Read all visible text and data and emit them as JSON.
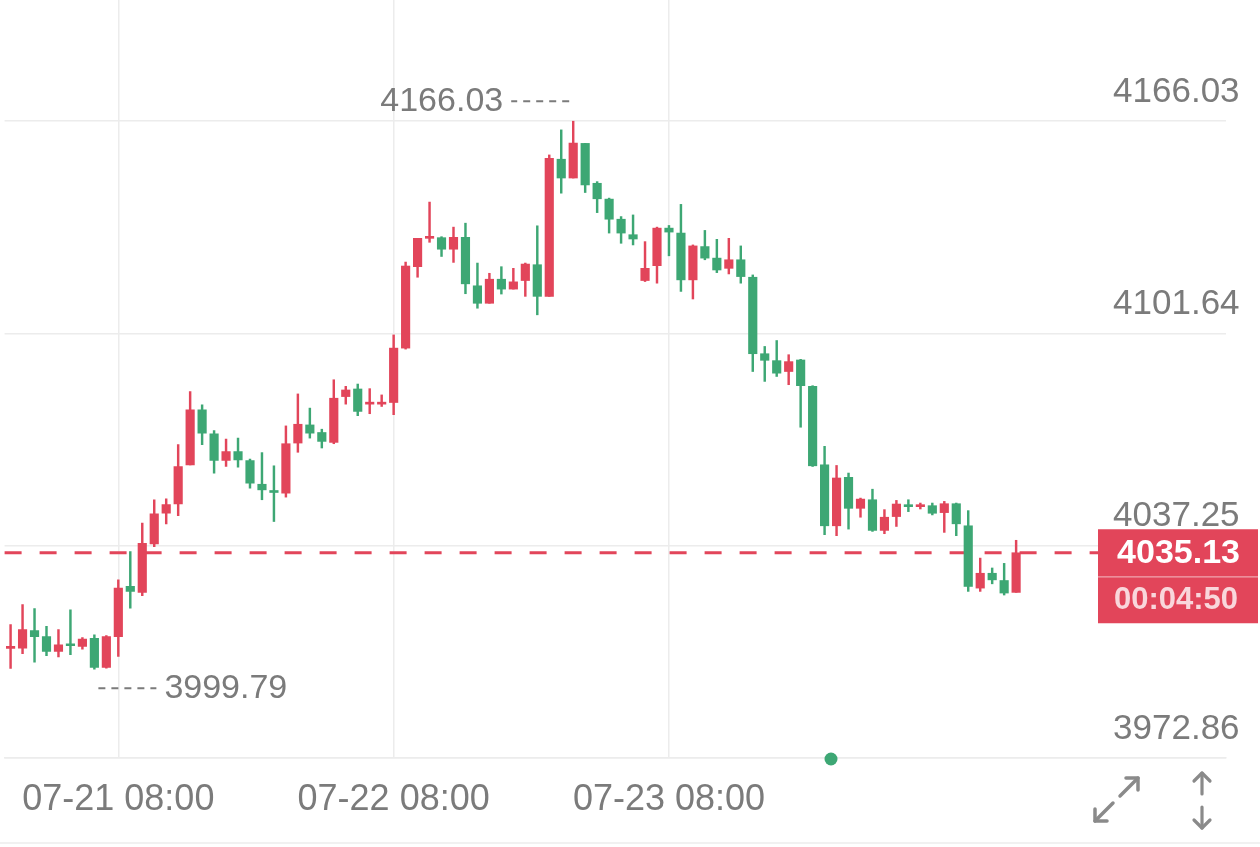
{
  "chart_data": {
    "type": "candlestick",
    "categories": [
      null,
      null,
      null,
      null,
      null,
      null,
      null,
      null,
      null,
      "07-21 08:00",
      null,
      null,
      null,
      null,
      null,
      null,
      null,
      null,
      null,
      null,
      null,
      null,
      null,
      null,
      null,
      null,
      null,
      null,
      null,
      null,
      null,
      null,
      "07-22 08:00",
      null,
      null,
      null,
      null,
      null,
      null,
      null,
      null,
      null,
      null,
      null,
      null,
      null,
      null,
      null,
      null,
      null,
      null,
      null,
      null,
      null,
      null,
      "07-23 08:00",
      null,
      null,
      null,
      null,
      null,
      null,
      null,
      null,
      null,
      null,
      null,
      null,
      null,
      null,
      null,
      null,
      null,
      null,
      null,
      null,
      null,
      null,
      null,
      null,
      null,
      null,
      null,
      null,
      null,
      null,
      null,
      null,
      null,
      null,
      null,
      null,
      null,
      null,
      null,
      null,
      null,
      null,
      null,
      null,
      null,
      null
    ],
    "ohlc": [
      [
        4006.1,
        4013.3,
        4000.0,
        4006.3
      ],
      [
        4006.2,
        4019.4,
        4004.5,
        4011.8
      ],
      [
        4011.5,
        4018.2,
        4001.9,
        4009.7
      ],
      [
        4009.7,
        4012.8,
        4003.9,
        4005.2
      ],
      [
        4005.2,
        4011.8,
        4003.5,
        4007.2
      ],
      [
        4007.2,
        4017.8,
        4004.2,
        4006.9
      ],
      [
        4006.7,
        4009.4,
        4005.9,
        4008.9
      ],
      [
        4009.2,
        4010.2,
        3999.79,
        4000.3
      ],
      [
        4000.3,
        4010.0,
        4000.1,
        4009.7
      ],
      [
        4009.7,
        4026.9,
        4003.7,
        4024.4
      ],
      [
        4024.9,
        4035.5,
        4018.3,
        4023.4
      ],
      [
        4023.1,
        4044.1,
        4022.1,
        4038.0
      ],
      [
        4037.8,
        4051.2,
        4037.0,
        4046.9
      ],
      [
        4047.1,
        4051.5,
        4043.9,
        4049.7
      ],
      [
        4049.9,
        4067.9,
        4046.4,
        4061.3
      ],
      [
        4061.8,
        4084.0,
        4061.8,
        4078.5
      ],
      [
        4078.5,
        4080.0,
        4067.9,
        4071.4
      ],
      [
        4071.2,
        4072.2,
        4059.3,
        4063.1
      ],
      [
        4063.1,
        4069.6,
        4061.3,
        4065.8
      ],
      [
        4065.8,
        4069.9,
        4061.1,
        4063.3
      ],
      [
        4063.1,
        4063.5,
        4054.7,
        4056.2
      ],
      [
        4055.9,
        4065.5,
        4051.2,
        4054.2
      ],
      [
        4053.7,
        4061.5,
        4044.6,
        4053.4
      ],
      [
        4053.2,
        4073.6,
        4052.0,
        4068.2
      ],
      [
        4068.4,
        4083.3,
        4065.6,
        4074.1
      ],
      [
        4073.9,
        4079.0,
        4069.9,
        4071.4
      ],
      [
        4071.6,
        4072.6,
        4066.9,
        4068.9
      ],
      [
        4068.6,
        4087.6,
        4068.2,
        4082.0
      ],
      [
        4082.5,
        4085.6,
        4080.2,
        4084.5
      ],
      [
        4084.8,
        4086.3,
        4076.7,
        4078.0
      ],
      [
        4080.2,
        4084.9,
        4077.3,
        4080.5
      ],
      [
        4080.2,
        4083.0,
        4079.5,
        4080.8
      ],
      [
        4080.7,
        4101.2,
        4077.0,
        4097.2
      ],
      [
        4097.2,
        4123.3,
        4096.9,
        4122.1
      ],
      [
        4121.9,
        4130.5,
        4118.7,
        4130.5
      ],
      [
        4130.5,
        4141.5,
        4129.3,
        4130.8
      ],
      [
        4130.7,
        4131.0,
        4125.0,
        4127.2
      ],
      [
        4127.2,
        4133.9,
        4123.2,
        4130.8
      ],
      [
        4130.8,
        4135.1,
        4113.7,
        4116.7
      ],
      [
        4116.1,
        4123.0,
        4109.3,
        4110.8
      ],
      [
        4110.8,
        4119.9,
        4110.8,
        4118.1
      ],
      [
        4118.1,
        4121.9,
        4113.6,
        4115.1
      ],
      [
        4115.1,
        4121.4,
        4115.1,
        4117.3
      ],
      [
        4117.7,
        4123.0,
        4112.9,
        4122.7
      ],
      [
        4122.5,
        4134.3,
        4107.3,
        4112.9
      ],
      [
        4112.9,
        4155.8,
        4112.9,
        4154.8
      ],
      [
        4154.5,
        4163.4,
        4144.2,
        4148.8
      ],
      [
        4148.8,
        4166.03,
        4148.8,
        4159.4
      ],
      [
        4159.3,
        4159.3,
        4144.4,
        4146.7
      ],
      [
        4147.2,
        4147.7,
        4138.3,
        4142.5
      ],
      [
        4142.4,
        4142.7,
        4132.1,
        4136.3
      ],
      [
        4136.3,
        4137.1,
        4129.0,
        4132.1
      ],
      [
        4131.6,
        4137.6,
        4128.5,
        4130.3
      ],
      [
        4117.7,
        4129.5,
        4117.4,
        4121.4
      ],
      [
        4122.2,
        4133.9,
        4116.9,
        4133.6
      ],
      [
        4133.6,
        4134.4,
        4125.2,
        4132.4
      ],
      [
        4132.1,
        4140.8,
        4114.4,
        4117.9
      ],
      [
        4117.9,
        4128.5,
        4112.1,
        4128.2
      ],
      [
        4128.0,
        4132.9,
        4124.0,
        4124.5
      ],
      [
        4124.5,
        4130.2,
        4120.1,
        4120.9
      ],
      [
        4121.4,
        4130.5,
        4119.7,
        4124.0
      ],
      [
        4124.0,
        4128.2,
        4116.9,
        4118.9
      ],
      [
        4118.7,
        4119.4,
        4090.1,
        4095.5
      ],
      [
        4095.5,
        4097.7,
        4087.1,
        4093.5
      ],
      [
        4093.4,
        4099.5,
        4088.6,
        4089.6
      ],
      [
        4090.1,
        4095.2,
        4086.1,
        4093.1
      ],
      [
        4093.6,
        4093.8,
        4073.2,
        4085.8
      ],
      [
        4085.6,
        4085.8,
        4061.3,
        4061.5
      ],
      [
        4061.8,
        4067.4,
        4040.6,
        4043.3
      ],
      [
        4043.3,
        4061.6,
        4040.3,
        4057.8
      ],
      [
        4058.0,
        4059.3,
        4042.3,
        4048.6
      ],
      [
        4048.6,
        4051.7,
        4045.9,
        4051.4
      ],
      [
        4051.2,
        4054.4,
        4041.6,
        4041.9
      ],
      [
        4041.9,
        4048.2,
        4040.9,
        4045.9
      ],
      [
        4046.1,
        4051.0,
        4043.1,
        4049.9
      ],
      [
        4049.4,
        4051.2,
        4047.6,
        4049.1
      ],
      [
        4049.1,
        4050.2,
        4048.4,
        4049.4
      ],
      [
        4049.4,
        4050.2,
        4046.6,
        4047.1
      ],
      [
        4047.3,
        4050.7,
        4041.3,
        4050.0
      ],
      [
        4050.0,
        4050.2,
        4040.3,
        4043.9
      ],
      [
        4043.3,
        4047.9,
        4023.4,
        4024.9
      ],
      [
        4024.4,
        4033.5,
        4023.4,
        4028.9
      ],
      [
        4028.9,
        4030.5,
        4025.7,
        4026.9
      ],
      [
        4026.7,
        4031.9,
        4022.3,
        4022.9
      ],
      [
        4023.1,
        4038.9,
        4023.1,
        4035.13
      ],
      null,
      null,
      null,
      null,
      null,
      null,
      null,
      null,
      null,
      null,
      null,
      null,
      null,
      null,
      null,
      null,
      null
    ],
    "colors": [
      "#e2455a",
      "#e2455a",
      "#3da774",
      "#3da774",
      "#e2455a",
      "#3da774",
      "#e2455a",
      "#3da774",
      "#e2455a",
      "#e2455a",
      "#3da774",
      "#e2455a",
      "#e2455a",
      "#e2455a",
      "#e2455a",
      "#e2455a",
      "#3da774",
      "#3da774",
      "#e2455a",
      "#3da774",
      "#3da774",
      "#3da774",
      "#3da774",
      "#e2455a",
      "#e2455a",
      "#3da774",
      "#3da774",
      "#e2455a",
      "#e2455a",
      "#3da774",
      "#e2455a",
      "#e2455a",
      "#e2455a",
      "#e2455a",
      "#e2455a",
      "#e2455a",
      "#3da774",
      "#e2455a",
      "#3da774",
      "#3da774",
      "#e2455a",
      "#3da774",
      "#e2455a",
      "#e2455a",
      "#3da774",
      "#e2455a",
      "#3da774",
      "#e2455a",
      "#3da774",
      "#3da774",
      "#3da774",
      "#3da774",
      "#3da774",
      "#e2455a",
      "#e2455a",
      "#3da774",
      "#3da774",
      "#e2455a",
      "#3da774",
      "#3da774",
      "#e2455a",
      "#3da774",
      "#3da774",
      "#3da774",
      "#3da774",
      "#e2455a",
      "#3da774",
      "#3da774",
      "#3da774",
      "#e2455a",
      "#3da774",
      "#e2455a",
      "#3da774",
      "#e2455a",
      "#e2455a",
      "#3da774",
      "#e2455a",
      "#3da774",
      "#e2455a",
      "#3da774",
      "#3da774",
      "#e2455a",
      "#3da774",
      "#3da774",
      "#e2455a",
      null,
      null,
      null,
      null,
      null,
      null,
      null,
      null,
      null,
      null,
      null,
      null,
      null,
      null,
      null,
      null,
      null
    ],
    "ylim": [
      3972.86,
      4202.8
    ],
    "yticks": [
      3972.86,
      4037.25,
      4101.64,
      4166.03
    ],
    "grid": true,
    "ref_lines": [
      {
        "axis": "y",
        "value": 4035.13,
        "label": "4035.13",
        "color": "#e2455a",
        "line_style": "dashed"
      }
    ],
    "annotations": [
      "4166.03",
      "3999.79",
      "00:04:50"
    ]
  }
}
